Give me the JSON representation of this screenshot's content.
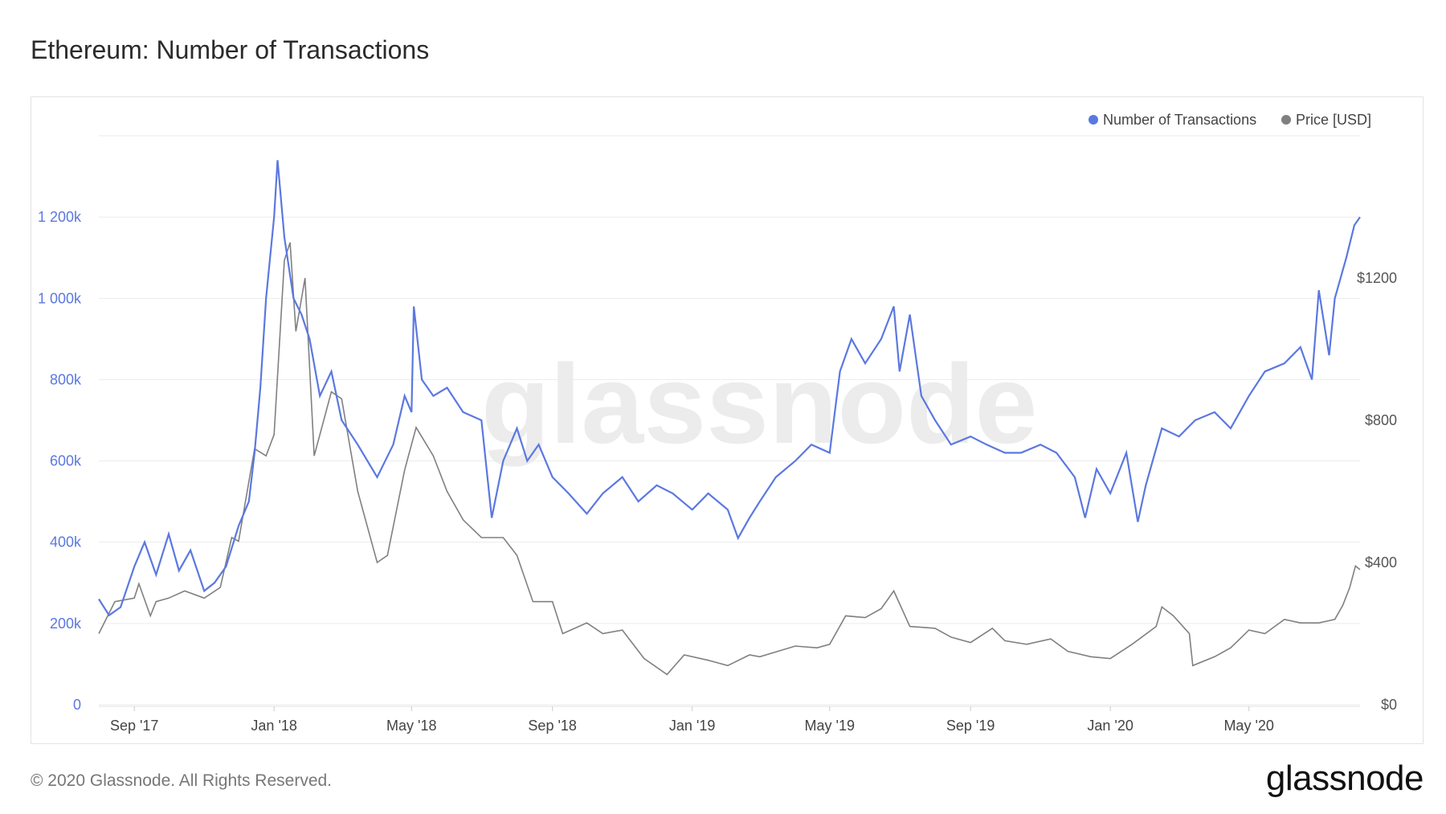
{
  "title": "Ethereum: Number of Transactions",
  "footer": "© 2020 Glassnode. All Rights Reserved.",
  "brand": "glassnode",
  "watermark": "glassnode",
  "colors": {
    "transactions": "#5b78e0",
    "price": "#808080",
    "grid": "#ebebeb"
  },
  "chart_data": {
    "type": "line",
    "legend_placement": "top-right",
    "grid": true,
    "x_range": [
      "2017-08-01",
      "2020-08-06"
    ],
    "x_ticks": [
      {
        "label": "Sep '17",
        "date": "2017-09-01"
      },
      {
        "label": "Jan '18",
        "date": "2018-01-01"
      },
      {
        "label": "May '18",
        "date": "2018-05-01"
      },
      {
        "label": "Sep '18",
        "date": "2018-09-01"
      },
      {
        "label": "Jan '19",
        "date": "2019-01-01"
      },
      {
        "label": "May '19",
        "date": "2019-05-01"
      },
      {
        "label": "Sep '19",
        "date": "2019-09-01"
      },
      {
        "label": "Jan '20",
        "date": "2020-01-01"
      },
      {
        "label": "May '20",
        "date": "2020-05-01"
      }
    ],
    "y_left": {
      "range": [
        0,
        1400000
      ],
      "ticks": [
        {
          "label": "0",
          "value": 0
        },
        {
          "label": "200k",
          "value": 200000
        },
        {
          "label": "400k",
          "value": 400000
        },
        {
          "label": "600k",
          "value": 600000
        },
        {
          "label": "800k",
          "value": 800000
        },
        {
          "label": "1 000k",
          "value": 1000000
        },
        {
          "label": "1 200k",
          "value": 1200000
        }
      ]
    },
    "y_right": {
      "range": [
        0,
        1600
      ],
      "ticks": [
        {
          "label": "$0",
          "value": 0
        },
        {
          "label": "$400",
          "value": 400
        },
        {
          "label": "$800",
          "value": 800
        },
        {
          "label": "$1200",
          "value": 1200
        }
      ]
    },
    "series": [
      {
        "name": "Number of Transactions",
        "axis": "left",
        "points": [
          [
            "2017-08-01",
            260000
          ],
          [
            "2017-08-10",
            220000
          ],
          [
            "2017-08-20",
            240000
          ],
          [
            "2017-09-01",
            340000
          ],
          [
            "2017-09-10",
            400000
          ],
          [
            "2017-09-20",
            320000
          ],
          [
            "2017-10-01",
            420000
          ],
          [
            "2017-10-10",
            330000
          ],
          [
            "2017-10-20",
            380000
          ],
          [
            "2017-11-01",
            280000
          ],
          [
            "2017-11-10",
            300000
          ],
          [
            "2017-11-20",
            340000
          ],
          [
            "2017-12-01",
            440000
          ],
          [
            "2017-12-10",
            500000
          ],
          [
            "2017-12-15",
            620000
          ],
          [
            "2017-12-20",
            780000
          ],
          [
            "2017-12-25",
            1000000
          ],
          [
            "2018-01-01",
            1200000
          ],
          [
            "2018-01-04",
            1340000
          ],
          [
            "2018-01-10",
            1150000
          ],
          [
            "2018-01-18",
            1000000
          ],
          [
            "2018-01-25",
            960000
          ],
          [
            "2018-02-01",
            900000
          ],
          [
            "2018-02-10",
            760000
          ],
          [
            "2018-02-20",
            820000
          ],
          [
            "2018-03-01",
            700000
          ],
          [
            "2018-03-15",
            640000
          ],
          [
            "2018-04-01",
            560000
          ],
          [
            "2018-04-15",
            640000
          ],
          [
            "2018-04-25",
            760000
          ],
          [
            "2018-05-01",
            720000
          ],
          [
            "2018-05-03",
            980000
          ],
          [
            "2018-05-10",
            800000
          ],
          [
            "2018-05-20",
            760000
          ],
          [
            "2018-06-01",
            780000
          ],
          [
            "2018-06-15",
            720000
          ],
          [
            "2018-07-01",
            700000
          ],
          [
            "2018-07-10",
            460000
          ],
          [
            "2018-07-20",
            600000
          ],
          [
            "2018-08-01",
            680000
          ],
          [
            "2018-08-10",
            600000
          ],
          [
            "2018-08-20",
            640000
          ],
          [
            "2018-09-01",
            560000
          ],
          [
            "2018-09-15",
            520000
          ],
          [
            "2018-10-01",
            470000
          ],
          [
            "2018-10-15",
            520000
          ],
          [
            "2018-11-01",
            560000
          ],
          [
            "2018-11-15",
            500000
          ],
          [
            "2018-12-01",
            540000
          ],
          [
            "2018-12-15",
            520000
          ],
          [
            "2019-01-01",
            480000
          ],
          [
            "2019-01-15",
            520000
          ],
          [
            "2019-02-01",
            480000
          ],
          [
            "2019-02-10",
            410000
          ],
          [
            "2019-02-20",
            460000
          ],
          [
            "2019-03-01",
            500000
          ],
          [
            "2019-03-15",
            560000
          ],
          [
            "2019-04-01",
            600000
          ],
          [
            "2019-04-15",
            640000
          ],
          [
            "2019-05-01",
            620000
          ],
          [
            "2019-05-10",
            820000
          ],
          [
            "2019-05-20",
            900000
          ],
          [
            "2019-06-01",
            840000
          ],
          [
            "2019-06-15",
            900000
          ],
          [
            "2019-06-26",
            980000
          ],
          [
            "2019-07-01",
            820000
          ],
          [
            "2019-07-10",
            960000
          ],
          [
            "2019-07-20",
            760000
          ],
          [
            "2019-08-01",
            700000
          ],
          [
            "2019-08-15",
            640000
          ],
          [
            "2019-09-01",
            660000
          ],
          [
            "2019-09-15",
            640000
          ],
          [
            "2019-10-01",
            620000
          ],
          [
            "2019-10-15",
            620000
          ],
          [
            "2019-11-01",
            640000
          ],
          [
            "2019-11-15",
            620000
          ],
          [
            "2019-12-01",
            560000
          ],
          [
            "2019-12-10",
            460000
          ],
          [
            "2019-12-20",
            580000
          ],
          [
            "2020-01-01",
            520000
          ],
          [
            "2020-01-15",
            620000
          ],
          [
            "2020-01-25",
            450000
          ],
          [
            "2020-02-01",
            540000
          ],
          [
            "2020-02-15",
            680000
          ],
          [
            "2020-03-01",
            660000
          ],
          [
            "2020-03-15",
            700000
          ],
          [
            "2020-04-01",
            720000
          ],
          [
            "2020-04-15",
            680000
          ],
          [
            "2020-05-01",
            760000
          ],
          [
            "2020-05-15",
            820000
          ],
          [
            "2020-06-01",
            840000
          ],
          [
            "2020-06-15",
            880000
          ],
          [
            "2020-06-25",
            800000
          ],
          [
            "2020-07-01",
            1020000
          ],
          [
            "2020-07-10",
            860000
          ],
          [
            "2020-07-15",
            1000000
          ],
          [
            "2020-07-25",
            1100000
          ],
          [
            "2020-08-01",
            1180000
          ],
          [
            "2020-08-06",
            1200000
          ]
        ]
      },
      {
        "name": "Price [USD]",
        "axis": "right",
        "points": [
          [
            "2017-08-01",
            200
          ],
          [
            "2017-08-15",
            290
          ],
          [
            "2017-09-01",
            300
          ],
          [
            "2017-09-05",
            340
          ],
          [
            "2017-09-15",
            250
          ],
          [
            "2017-09-20",
            290
          ],
          [
            "2017-10-01",
            300
          ],
          [
            "2017-10-15",
            320
          ],
          [
            "2017-11-01",
            300
          ],
          [
            "2017-11-15",
            330
          ],
          [
            "2017-11-25",
            470
          ],
          [
            "2017-12-01",
            460
          ],
          [
            "2017-12-15",
            720
          ],
          [
            "2017-12-25",
            700
          ],
          [
            "2018-01-01",
            760
          ],
          [
            "2018-01-10",
            1250
          ],
          [
            "2018-01-15",
            1300
          ],
          [
            "2018-01-20",
            1050
          ],
          [
            "2018-01-28",
            1200
          ],
          [
            "2018-02-05",
            700
          ],
          [
            "2018-02-20",
            880
          ],
          [
            "2018-03-01",
            860
          ],
          [
            "2018-03-15",
            600
          ],
          [
            "2018-04-01",
            400
          ],
          [
            "2018-04-10",
            420
          ],
          [
            "2018-04-25",
            660
          ],
          [
            "2018-05-05",
            780
          ],
          [
            "2018-05-20",
            700
          ],
          [
            "2018-06-01",
            600
          ],
          [
            "2018-06-15",
            520
          ],
          [
            "2018-07-01",
            470
          ],
          [
            "2018-07-20",
            470
          ],
          [
            "2018-08-01",
            420
          ],
          [
            "2018-08-15",
            290
          ],
          [
            "2018-09-01",
            290
          ],
          [
            "2018-09-10",
            200
          ],
          [
            "2018-10-01",
            230
          ],
          [
            "2018-10-15",
            200
          ],
          [
            "2018-11-01",
            210
          ],
          [
            "2018-11-20",
            130
          ],
          [
            "2018-12-10",
            85
          ],
          [
            "2018-12-25",
            140
          ],
          [
            "2019-01-15",
            125
          ],
          [
            "2019-02-01",
            110
          ],
          [
            "2019-02-20",
            140
          ],
          [
            "2019-03-01",
            135
          ],
          [
            "2019-04-01",
            165
          ],
          [
            "2019-04-20",
            160
          ],
          [
            "2019-05-01",
            170
          ],
          [
            "2019-05-15",
            250
          ],
          [
            "2019-06-01",
            245
          ],
          [
            "2019-06-15",
            270
          ],
          [
            "2019-06-26",
            320
          ],
          [
            "2019-07-10",
            220
          ],
          [
            "2019-08-01",
            215
          ],
          [
            "2019-08-15",
            190
          ],
          [
            "2019-09-01",
            175
          ],
          [
            "2019-09-20",
            215
          ],
          [
            "2019-10-01",
            180
          ],
          [
            "2019-10-20",
            170
          ],
          [
            "2019-11-10",
            185
          ],
          [
            "2019-11-25",
            150
          ],
          [
            "2019-12-15",
            135
          ],
          [
            "2020-01-01",
            130
          ],
          [
            "2020-01-20",
            170
          ],
          [
            "2020-02-10",
            220
          ],
          [
            "2020-02-15",
            275
          ],
          [
            "2020-02-25",
            250
          ],
          [
            "2020-03-10",
            200
          ],
          [
            "2020-03-13",
            110
          ],
          [
            "2020-04-01",
            135
          ],
          [
            "2020-04-15",
            160
          ],
          [
            "2020-05-01",
            210
          ],
          [
            "2020-05-15",
            200
          ],
          [
            "2020-06-01",
            240
          ],
          [
            "2020-06-15",
            230
          ],
          [
            "2020-07-01",
            230
          ],
          [
            "2020-07-15",
            240
          ],
          [
            "2020-07-22",
            280
          ],
          [
            "2020-07-28",
            330
          ],
          [
            "2020-08-02",
            390
          ],
          [
            "2020-08-06",
            380
          ]
        ]
      }
    ]
  }
}
